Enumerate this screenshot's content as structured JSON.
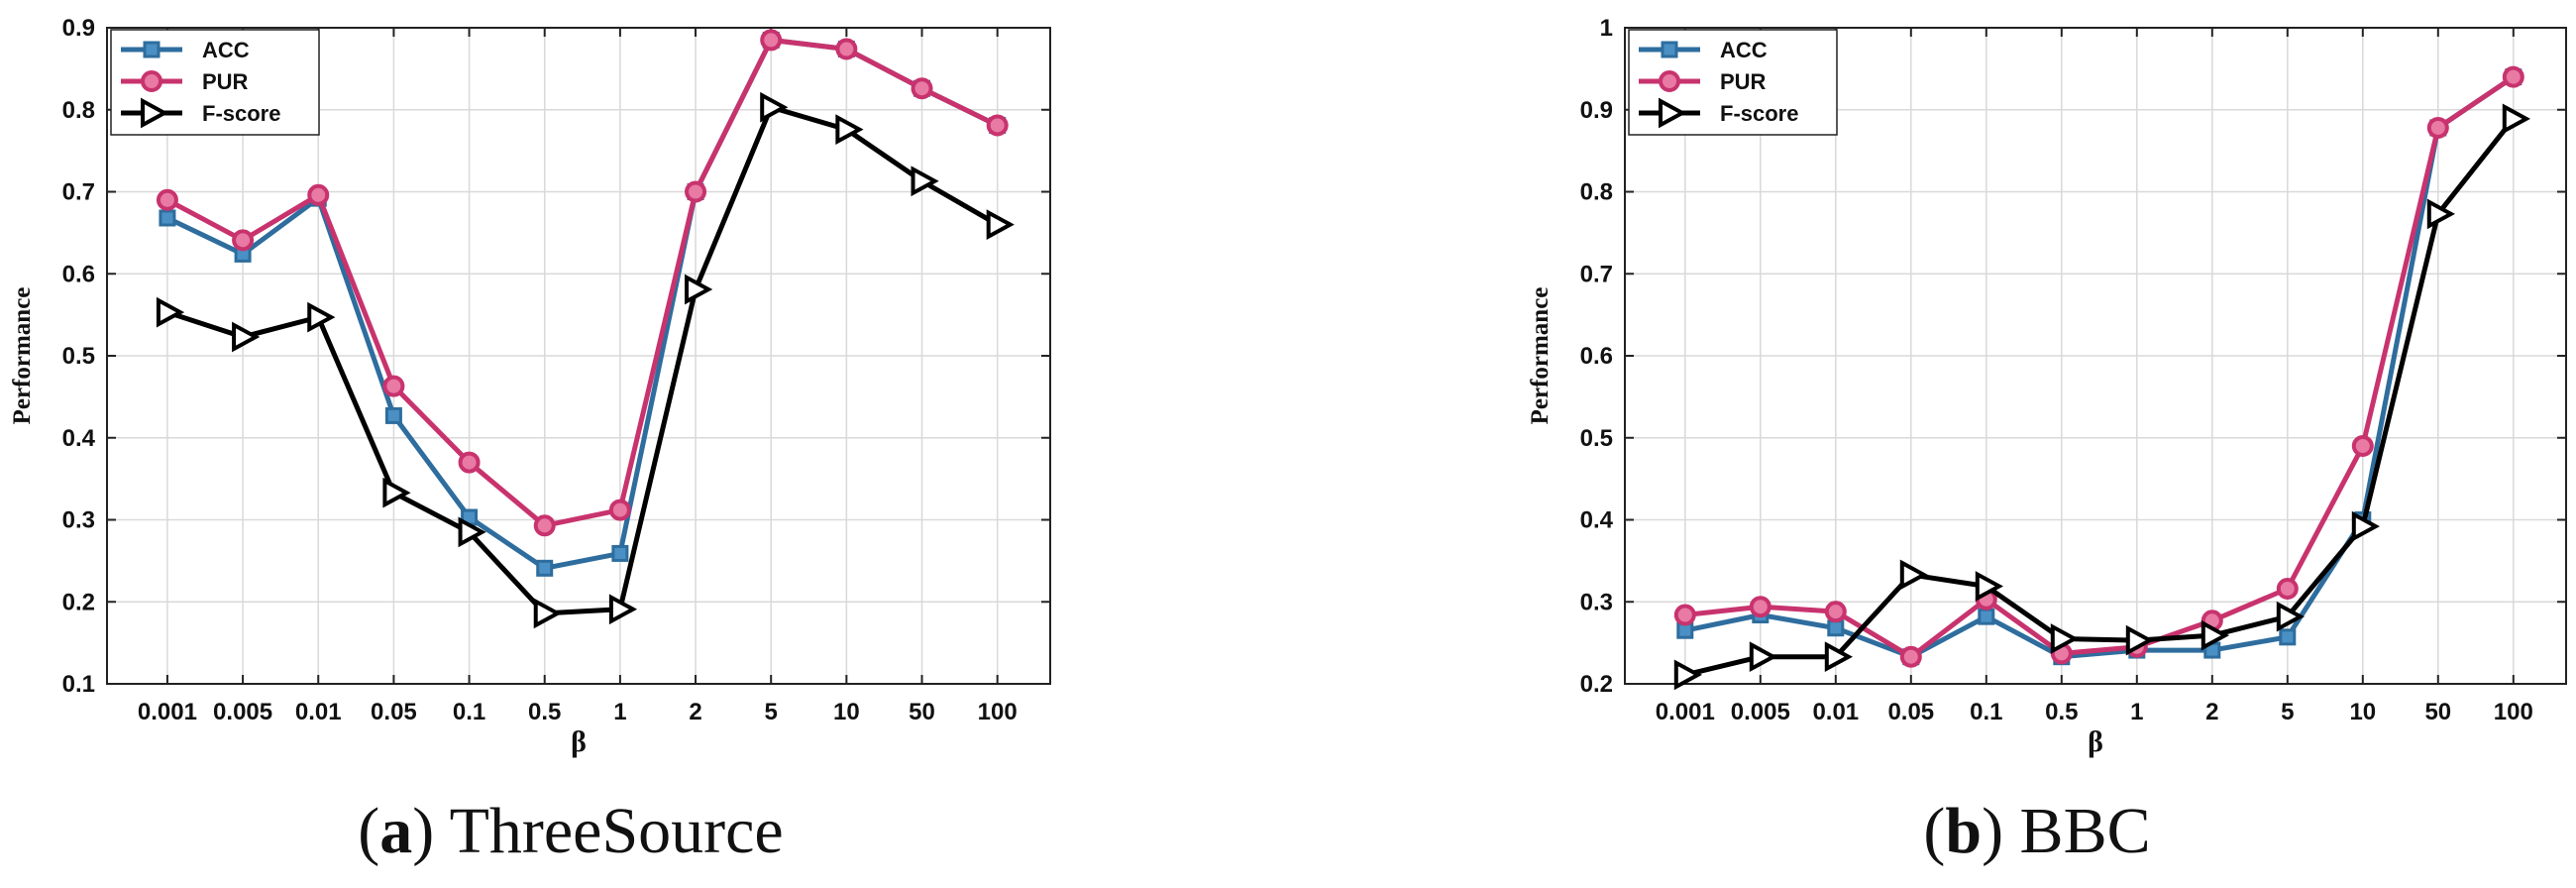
{
  "chart_data": [
    {
      "type": "line",
      "caption_label": "a",
      "caption_title": "ThreeSource",
      "xlabel": "β",
      "ylabel": "Performance",
      "ylim": [
        0.1,
        0.9
      ],
      "yticks": [
        "0.1",
        "0.2",
        "0.3",
        "0.4",
        "0.5",
        "0.6",
        "0.7",
        "0.8",
        "0.9"
      ],
      "categories": [
        "0.001",
        "0.005",
        "0.01",
        "0.05",
        "0.1",
        "0.5",
        "1",
        "2",
        "5",
        "10",
        "50",
        "100"
      ],
      "legend_position": "top-left",
      "grid": true,
      "series": [
        {
          "name": "ACC",
          "color": "#2e6d9e",
          "marker": "square",
          "values": [
            0.668,
            0.624,
            0.692,
            0.427,
            0.303,
            0.241,
            0.259,
            0.7,
            0.885,
            0.874,
            0.826,
            0.781
          ]
        },
        {
          "name": "PUR",
          "color": "#c8336e",
          "marker": "circle",
          "values": [
            0.69,
            0.641,
            0.696,
            0.463,
            0.37,
            0.293,
            0.312,
            0.7,
            0.885,
            0.874,
            0.826,
            0.781
          ]
        },
        {
          "name": "F-score",
          "color": "#000000",
          "marker": "triangle-right",
          "values": [
            0.553,
            0.523,
            0.547,
            0.333,
            0.285,
            0.186,
            0.191,
            0.581,
            0.803,
            0.776,
            0.713,
            0.66
          ]
        }
      ]
    },
    {
      "type": "line",
      "caption_label": "b",
      "caption_title": "BBC",
      "xlabel": "β",
      "ylabel": "Performance",
      "ylim": [
        0.2,
        1.0
      ],
      "yticks": [
        "0.2",
        "0.3",
        "0.4",
        "0.5",
        "0.6",
        "0.7",
        "0.8",
        "0.9",
        "1"
      ],
      "categories": [
        "0.001",
        "0.005",
        "0.01",
        "0.05",
        "0.1",
        "0.5",
        "1",
        "2",
        "5",
        "10",
        "50",
        "100"
      ],
      "legend_position": "top-left",
      "grid": true,
      "series": [
        {
          "name": "ACC",
          "color": "#2e6d9e",
          "marker": "square",
          "values": [
            0.265,
            0.284,
            0.268,
            0.233,
            0.282,
            0.233,
            0.241,
            0.241,
            0.257,
            0.4,
            0.878,
            0.94
          ]
        },
        {
          "name": "PUR",
          "color": "#c8336e",
          "marker": "circle",
          "values": [
            0.284,
            0.294,
            0.288,
            0.233,
            0.303,
            0.237,
            0.245,
            0.277,
            0.316,
            0.49,
            0.878,
            0.94
          ]
        },
        {
          "name": "F-score",
          "color": "#000000",
          "marker": "triangle-right",
          "values": [
            0.211,
            0.233,
            0.233,
            0.333,
            0.319,
            0.255,
            0.253,
            0.259,
            0.282,
            0.392,
            0.773,
            0.889
          ]
        }
      ]
    }
  ]
}
